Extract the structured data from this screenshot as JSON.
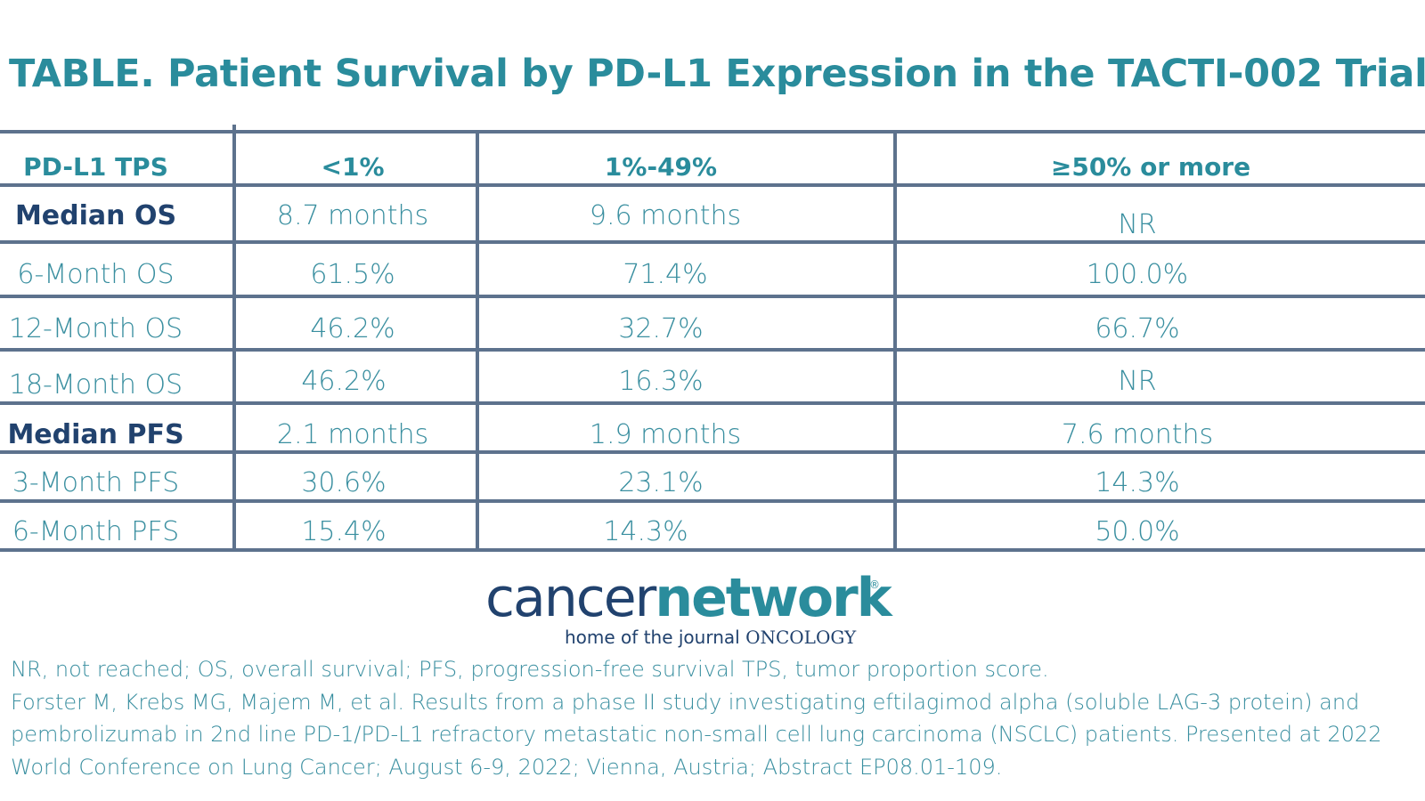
{
  "title": "TABLE. Patient Survival by PD-L1 Expression in the TACTI-002 Trial",
  "table": {
    "headers": [
      "PD-L1 TPS",
      "<1%",
      "1%-49%",
      "≥50% or more"
    ],
    "rows": [
      {
        "label": "Median OS",
        "bold": true,
        "values": [
          "8.7 months",
          "9.6 months",
          "NR"
        ]
      },
      {
        "label": "6-Month OS",
        "bold": false,
        "values": [
          "61.5%",
          "71.4%",
          "100.0%"
        ]
      },
      {
        "label": "12-Month OS",
        "bold": false,
        "values": [
          "46.2%",
          "32.7%",
          "66.7%"
        ]
      },
      {
        "label": "18-Month OS",
        "bold": false,
        "values": [
          "46.2%",
          "16.3%",
          "NR"
        ]
      },
      {
        "label": "Median PFS",
        "bold": true,
        "values": [
          "2.1 months",
          "1.9 months",
          "7.6 months"
        ]
      },
      {
        "label": "3-Month PFS",
        "bold": false,
        "values": [
          "30.6%",
          "23.1%",
          "14.3%"
        ]
      },
      {
        "label": "6-Month PFS",
        "bold": false,
        "values": [
          "15.4%",
          "14.3%",
          "50.0%"
        ]
      }
    ]
  },
  "logo": {
    "cancer": "cancer",
    "network": "network",
    "registered": "®",
    "tagline_prefix": "home of the journal",
    "tagline_journal": "ONCOLOGY"
  },
  "footnotes": [
    "NR, not reached; OS, overall survival; PFS, progression-free survival TPS, tumor proportion score.",
    "Forster M, Krebs MG, Majem M, et al. Results from a phase II study investigating eftilagimod alpha (soluble LAG-3 protein) and",
    "pembrolizumab in 2nd line PD-1/PD-L1 refractory metastatic non-small cell lung carcinoma (NSCLC) patients. Presented at 2022",
    "World Conference on Lung Cancer; August 6-9, 2022; Vienna, Austria; Abstract EP08.01-109."
  ],
  "colors": {
    "teal": "#2a8c9c",
    "navy": "#21426e",
    "grid": "#5d728d"
  }
}
